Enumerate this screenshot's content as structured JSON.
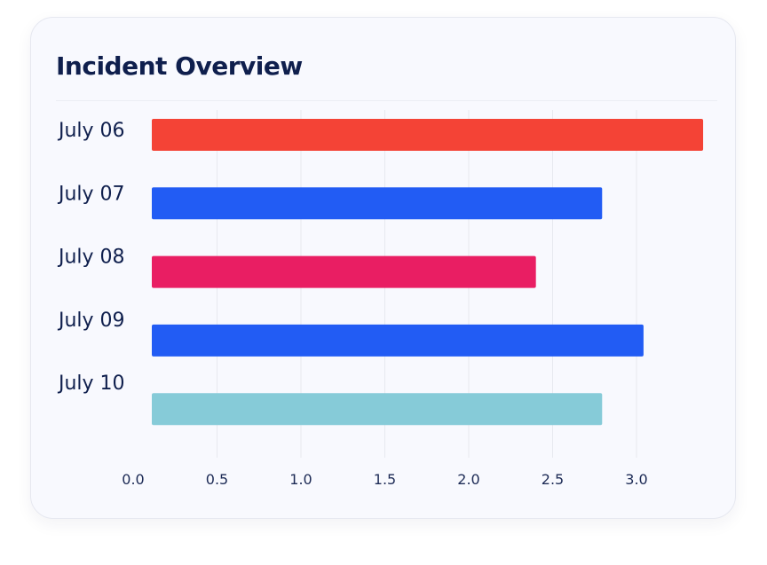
{
  "header": {
    "title": "Incident Overview"
  },
  "chart_data": {
    "type": "bar",
    "orientation": "horizontal",
    "title": "Incident Overview",
    "xlabel": "",
    "ylabel": "",
    "categories": [
      "July 06",
      "July 07",
      "July 08",
      "July 09",
      "July 10"
    ],
    "values": [
      3.33,
      2.72,
      2.32,
      2.97,
      2.72
    ],
    "colors": [
      "#f44336",
      "#225cf4",
      "#e91e63",
      "#225cf4",
      "#86cbd8"
    ],
    "xlim": [
      0,
      3.3
    ],
    "x_ticks": [
      "0.0",
      "0.5",
      "1.0",
      "1.5",
      "2.0",
      "2.5",
      "3.0"
    ],
    "grid": "vertical",
    "legend": "none"
  }
}
